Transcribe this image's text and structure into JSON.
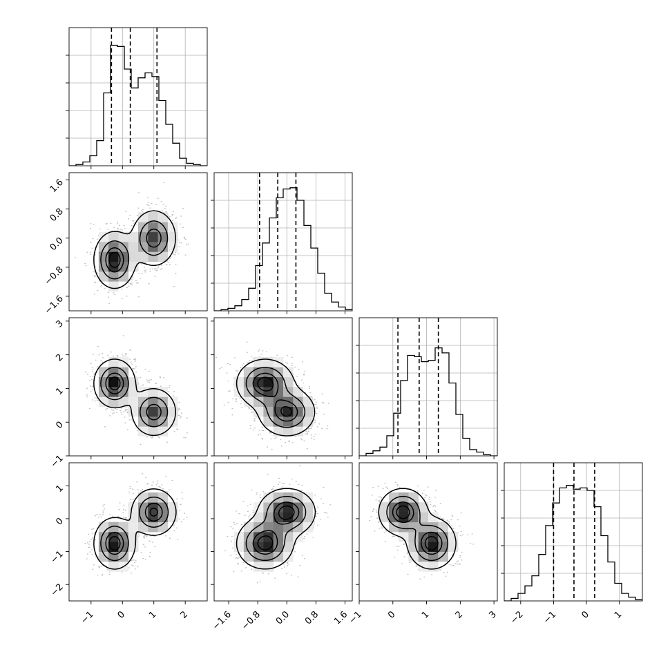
{
  "chart_data": {
    "type": "corner",
    "parameters": 4,
    "ranges": [
      [
        -1.7,
        2.7
      ],
      [
        -2.0,
        1.8
      ],
      [
        -1.0,
        3.1
      ],
      [
        -2.5,
        1.7
      ]
    ],
    "ticks": [
      {
        "values": [
          -1,
          0,
          1,
          2
        ],
        "labels": [
          "−1",
          "0",
          "1",
          "2"
        ]
      },
      {
        "values": [
          -1.6,
          -0.8,
          0.0,
          0.8,
          1.6
        ],
        "labels": [
          "−1.6",
          "−0.8",
          "0.0",
          "0.8",
          "1.6"
        ]
      },
      {
        "values": [
          -1,
          0,
          1,
          2,
          3
        ],
        "labels": [
          "−1",
          "0",
          "1",
          "2",
          "3"
        ]
      },
      {
        "values": [
          -2,
          -1,
          0,
          1
        ],
        "labels": [
          "−2",
          "−1",
          "0",
          "1"
        ]
      }
    ],
    "quantiles": [
      [
        -0.35,
        0.25,
        1.1
      ],
      [
        -0.75,
        -0.25,
        0.25
      ],
      [
        0.15,
        0.78,
        1.35
      ],
      [
        -1.0,
        -0.38,
        0.25
      ]
    ],
    "histograms": [
      {
        "bin_start": -1.7,
        "bin_width": 0.22,
        "counts": [
          0.0,
          0.01,
          0.03,
          0.08,
          0.2,
          0.58,
          0.96,
          0.95,
          0.77,
          0.62,
          0.7,
          0.74,
          0.71,
          0.52,
          0.33,
          0.18,
          0.06,
          0.02,
          0.01,
          0.0
        ]
      },
      {
        "bin_start": -2.0,
        "bin_width": 0.19,
        "counts": [
          0.0,
          0.01,
          0.02,
          0.04,
          0.09,
          0.18,
          0.36,
          0.54,
          0.74,
          0.9,
          0.97,
          0.98,
          0.88,
          0.68,
          0.5,
          0.3,
          0.14,
          0.07,
          0.03,
          0.01
        ]
      },
      {
        "bin_start": -1.0,
        "bin_width": 0.205,
        "counts": [
          0.0,
          0.02,
          0.04,
          0.07,
          0.16,
          0.34,
          0.6,
          0.8,
          0.79,
          0.75,
          0.76,
          0.86,
          0.82,
          0.58,
          0.33,
          0.14,
          0.05,
          0.03,
          0.01,
          0.0
        ]
      },
      {
        "bin_start": -2.5,
        "bin_width": 0.21,
        "counts": [
          0.0,
          0.02,
          0.06,
          0.12,
          0.2,
          0.37,
          0.6,
          0.78,
          0.9,
          0.92,
          0.89,
          0.9,
          0.88,
          0.75,
          0.52,
          0.31,
          0.14,
          0.06,
          0.03,
          0.01
        ]
      }
    ],
    "histogram_ylim": [
      0,
      1.1
    ],
    "histogram_yticks": [
      0.22,
      0.44,
      0.66,
      0.88
    ],
    "mixture_components": [
      {
        "weight": 0.52,
        "mean": [
          -0.25,
          -0.6,
          1.15,
          -0.75
        ],
        "sd": [
          0.32,
          0.38,
          0.35,
          0.38
        ]
      },
      {
        "weight": 0.48,
        "mean": [
          1.0,
          0.0,
          0.3,
          0.2
        ],
        "sd": [
          0.35,
          0.38,
          0.35,
          0.35
        ]
      }
    ],
    "contour_levels": [
      0.12,
      0.39,
      0.68,
      0.86
    ],
    "gridlines": true,
    "legend": "none"
  }
}
